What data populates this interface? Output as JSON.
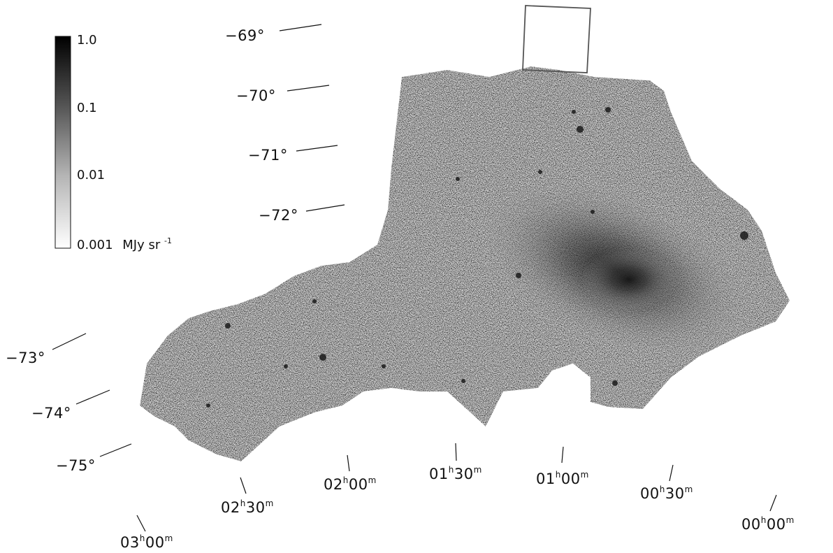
{
  "colorbar": {
    "ticks": [
      "1.0",
      "0.1",
      "0.01",
      "0.001"
    ],
    "unit_label": "MJy sr",
    "unit_exponent": "-1",
    "scale": "log",
    "colormap": [
      "#000000",
      "#ffffff"
    ]
  },
  "declination_labels": [
    "−69°",
    "−70°",
    "−71°",
    "−72°",
    "−73°",
    "−74°",
    "−75°"
  ],
  "right_ascension_labels": [
    {
      "h": "03",
      "m": "00"
    },
    {
      "h": "02",
      "m": "30"
    },
    {
      "h": "02",
      "m": "00"
    },
    {
      "h": "01",
      "m": "30"
    },
    {
      "h": "01",
      "m": "00"
    },
    {
      "h": "00",
      "m": "30"
    },
    {
      "h": "00",
      "m": "00"
    }
  ],
  "ra_units": {
    "hour": "h",
    "minute": "m"
  },
  "colors": {
    "tile_outline": "#555555",
    "background": "#ffffff",
    "text": "#111111"
  }
}
